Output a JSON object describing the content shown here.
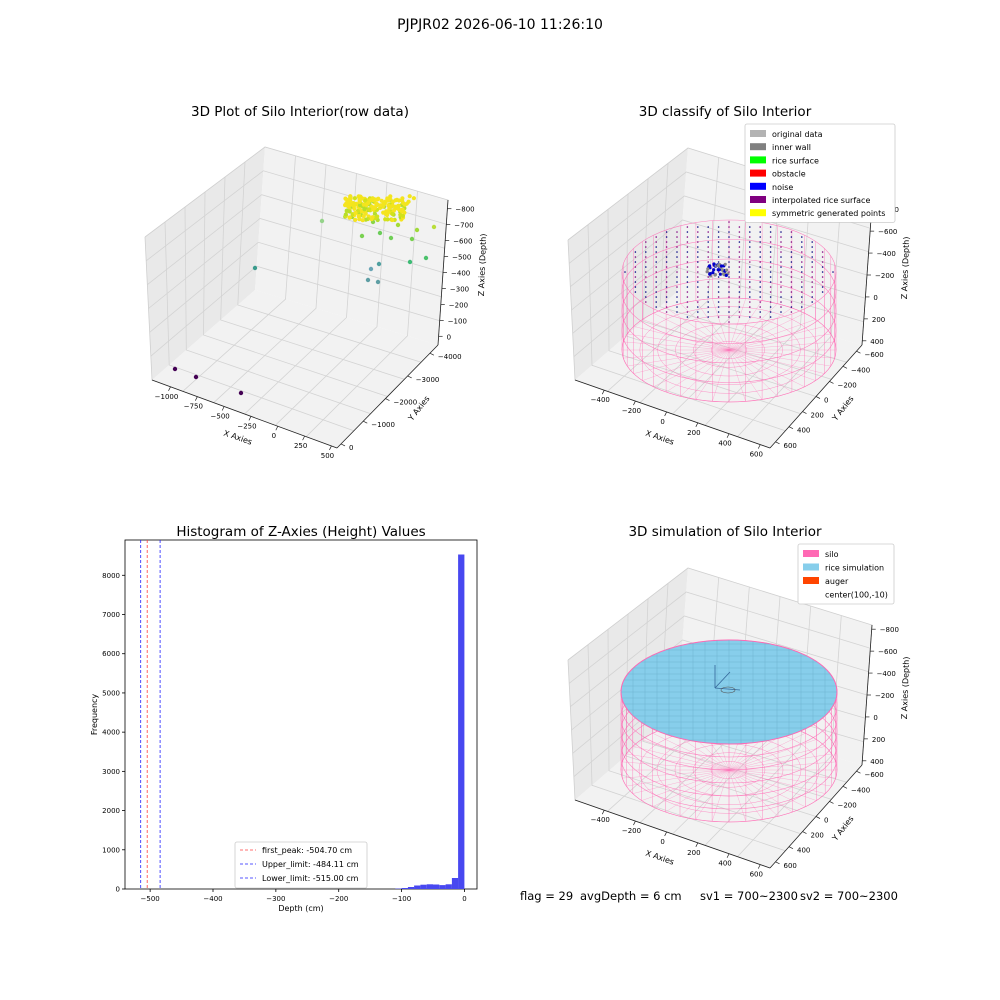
{
  "figure": {
    "suptitle": "PJPJR02 2026-06-10 11:26:10"
  },
  "colors": {
    "pane": "#f2f2f2",
    "pane_side": "#e9e9e9",
    "grid": "#d3d3d3",
    "silo": "#ff69b4",
    "rice": "#87ceeb",
    "hist_bar": "#4848f0"
  },
  "panels": {
    "raw": {
      "title": "3D Plot of Silo Interior(row data)",
      "xlabel": "X Axies",
      "ylabel": "Y Axies",
      "zlabel": "Z Axies (Depth)",
      "xticks": [
        "−1000",
        "−750",
        "−500",
        "−250",
        "0",
        "250",
        "500"
      ],
      "yticks": [
        "0",
        "−1000",
        "−2000",
        "−3000",
        "−4000"
      ],
      "zticks": [
        "0",
        "−100",
        "−200",
        "−300",
        "−400",
        "−500",
        "−600",
        "−700",
        "−800"
      ]
    },
    "classify": {
      "title": "3D classify of Silo Interior",
      "xlabel": "X Axies",
      "ylabel": "Y Axies",
      "zlabel": "Z Axies (Depth)",
      "xticks": [
        "−400",
        "−200",
        "0",
        "200",
        "400",
        "600"
      ],
      "yticks": [
        "600",
        "400",
        "200",
        "0",
        "−200",
        "−400",
        "−600"
      ],
      "zticks": [
        "400",
        "200",
        "0",
        "−200",
        "−400",
        "−600",
        "−800"
      ],
      "legend": [
        {
          "label": "original data",
          "color": "#b3b3b3"
        },
        {
          "label": "inner wall",
          "color": "#808080"
        },
        {
          "label": "rice surface",
          "color": "#00ff00"
        },
        {
          "label": "obstacle",
          "color": "#ff0000"
        },
        {
          "label": "noise",
          "color": "#0000ff"
        },
        {
          "label": "interpolated rice surface",
          "color": "#800080"
        },
        {
          "label": "symmetric generated points",
          "color": "#ffff00"
        }
      ]
    },
    "histogram": {
      "title": "Histogram of Z-Axies (Height) Values",
      "xlabel": "Depth (cm)",
      "ylabel": "Frequency",
      "legend": [
        {
          "label": "first_peak: -504.70 cm",
          "color": "#ff4040"
        },
        {
          "label": "Upper_limit: -484.11 cm",
          "color": "#2020ff"
        },
        {
          "label": "Lower_limit: -515.00 cm",
          "color": "#2020ff"
        }
      ]
    },
    "simulation": {
      "title": "3D simulation of Silo Interior",
      "xlabel": "X Axies",
      "ylabel": "Y Axies",
      "zlabel": "Z Axies (Depth)",
      "xticks": [
        "−400",
        "−200",
        "0",
        "200",
        "400",
        "600"
      ],
      "yticks": [
        "600",
        "400",
        "200",
        "0",
        "−200",
        "−400",
        "−600"
      ],
      "zticks": [
        "400",
        "200",
        "0",
        "−200",
        "−400",
        "−600",
        "−800"
      ],
      "legend": [
        {
          "label": "silo",
          "color": "#ff69b4"
        },
        {
          "label": "rice simulation",
          "color": "#87ceeb"
        },
        {
          "label": "auger",
          "color": "#ff4500"
        },
        {
          "label": "center(100,-10)",
          "color": ""
        }
      ]
    }
  },
  "footer": {
    "flag": "flag = 29",
    "avg_depth": "avgDepth = 6 cm",
    "sv1": "sv1 = 700~2300",
    "sv2": "sv2 = 700~2300"
  },
  "chart_data": [
    {
      "type": "scatter",
      "title": "3D Plot of Silo Interior(row data)",
      "xlabel": "X Axies",
      "ylabel": "Y Axies",
      "zlabel": "Z Axies (Depth)",
      "xlim": [
        -1100,
        500
      ],
      "ylim": [
        -4300,
        0
      ],
      "zlim": [
        -800,
        0
      ],
      "note_points": [
        {
          "x": -1100,
          "y": -4100,
          "z": -800
        },
        {
          "x": -950,
          "y": -4000,
          "z": -800
        },
        {
          "x": -650,
          "y": -3600,
          "z": -800
        },
        {
          "x": -150,
          "y": -600,
          "z": -350
        },
        {
          "x": 100,
          "y": -900,
          "z": -350
        },
        {
          "x": 200,
          "y": -800,
          "z": -400
        },
        {
          "x": 350,
          "y": -400,
          "z": -300
        },
        {
          "x": 200,
          "y": -200,
          "z": -100
        },
        {
          "x": 0,
          "y": -100,
          "z": -50
        }
      ]
    },
    {
      "type": "scatter",
      "title": "3D classify of Silo Interior",
      "xlabel": "X Axies",
      "ylabel": "Y Axies",
      "zlabel": "Z Axies (Depth)",
      "xlim": [
        -500,
        700
      ],
      "ylim": [
        -650,
        650
      ],
      "zlim": [
        -900,
        400
      ],
      "legend": [
        "original data",
        "inner wall",
        "rice surface",
        "obstacle",
        "noise",
        "interpolated rice surface",
        "symmetric generated points"
      ],
      "legend_position": "top-right"
    },
    {
      "type": "bar",
      "title": "Histogram of Z-Axies (Height) Values",
      "xlabel": "Depth (cm)",
      "ylabel": "Frequency",
      "xlim": [
        -540,
        20
      ],
      "ylim": [
        0,
        8900
      ],
      "xticks": [
        -500,
        -400,
        -300,
        -200,
        -100,
        0
      ],
      "yticks": [
        0,
        1000,
        2000,
        3000,
        4000,
        5000,
        6000,
        7000,
        8000
      ],
      "bins": [
        {
          "x0": -110,
          "x1": -100,
          "value": 10
        },
        {
          "x0": -100,
          "x1": -90,
          "value": 25
        },
        {
          "x0": -90,
          "x1": -80,
          "value": 50
        },
        {
          "x0": -80,
          "x1": -70,
          "value": 90
        },
        {
          "x0": -70,
          "x1": -60,
          "value": 110
        },
        {
          "x0": -60,
          "x1": -50,
          "value": 120
        },
        {
          "x0": -50,
          "x1": -40,
          "value": 115
        },
        {
          "x0": -40,
          "x1": -30,
          "value": 100
        },
        {
          "x0": -30,
          "x1": -20,
          "value": 120
        },
        {
          "x0": -20,
          "x1": -10,
          "value": 280
        },
        {
          "x0": -10,
          "x1": 0,
          "value": 8530
        }
      ],
      "vlines": [
        {
          "name": "first_peak",
          "x": -504.7,
          "color": "#ff4040"
        },
        {
          "name": "Upper_limit",
          "x": -484.11,
          "color": "#2020ff"
        },
        {
          "name": "Lower_limit",
          "x": -515.0,
          "color": "#2020ff"
        }
      ],
      "legend_position": "lower-center"
    },
    {
      "type": "scatter",
      "title": "3D simulation of Silo Interior",
      "xlabel": "X Axies",
      "ylabel": "Y Axies",
      "zlabel": "Z Axies (Depth)",
      "xlim": [
        -500,
        700
      ],
      "ylim": [
        -650,
        650
      ],
      "zlim": [
        -900,
        400
      ],
      "legend": [
        "silo",
        "rice simulation",
        "auger",
        "center(100,-10)"
      ],
      "legend_position": "top-right"
    }
  ]
}
